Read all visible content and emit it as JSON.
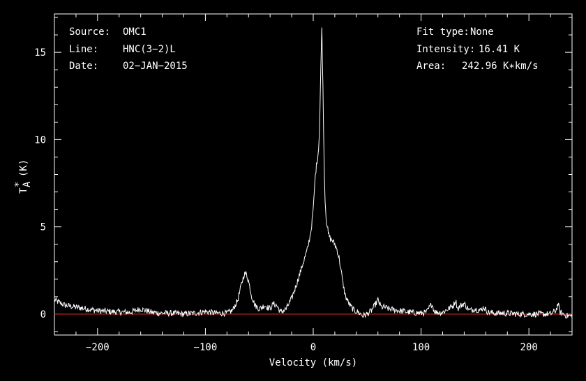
{
  "header": {
    "source_label": "Source:",
    "source_value": "OMC1",
    "line_label": "Line:",
    "line_value": "HNC(3−2)L",
    "date_label": "Date:",
    "date_value": "02−JAN−2015",
    "fit_label": "Fit type:",
    "fit_value": "None",
    "intensity_label": "Intensity:",
    "intensity_value": "16.41 K",
    "area_label": "Area:",
    "area_value": "242.96 K∗km/s"
  },
  "chart_data": {
    "type": "line",
    "xlabel": "Velocity (km/s)",
    "ylabel_main": "T",
    "ylabel_sup": "*",
    "ylabel_sub": "A",
    "ylabel_unit": "(K)",
    "xlim": [
      -240,
      240
    ],
    "ylim": [
      -1.2,
      17.2
    ],
    "x_ticks": [
      -200,
      -100,
      0,
      100,
      200
    ],
    "x_tick_labels": [
      "−200",
      "−100",
      "0",
      "100",
      "200"
    ],
    "y_ticks": [
      0,
      5,
      10,
      15
    ],
    "y_tick_labels": [
      "0",
      "5",
      "10",
      "15"
    ],
    "baseline": 0,
    "colors": {
      "background": "#000000",
      "spectrum": "#ffffff",
      "baseline": "#cc2222",
      "axes": "#ffffff"
    },
    "series": [
      {
        "x": [
          -240,
          -230,
          -220,
          -210,
          -200,
          -190,
          -180,
          -170,
          -160,
          -150,
          -140,
          -130,
          -120,
          -110,
          -100,
          -90,
          -80,
          -75,
          -70,
          -67,
          -64,
          -62,
          -60,
          -57,
          -54,
          -50,
          -45,
          -40,
          -37,
          -34,
          -30,
          -25,
          -20,
          -15,
          -10,
          -5,
          -2,
          0,
          2,
          4,
          5,
          6,
          7,
          8,
          9,
          10,
          11,
          12,
          14,
          16,
          18,
          20,
          22,
          24,
          26,
          28,
          30,
          34,
          38,
          42,
          46,
          50,
          54,
          57,
          60,
          63,
          66,
          70,
          80,
          90,
          100,
          105,
          110,
          112,
          114,
          120,
          125,
          130,
          132,
          134,
          137,
          140,
          145,
          150,
          155,
          158,
          162,
          170,
          180,
          190,
          200,
          210,
          220,
          225,
          227,
          229,
          232,
          235,
          240
        ],
        "y": [
          0.8,
          0.5,
          0.4,
          0.3,
          0.2,
          0.15,
          0.12,
          0.1,
          0.3,
          0.1,
          0.05,
          0.05,
          0.0,
          0.05,
          0.15,
          0.05,
          0.05,
          0.2,
          0.8,
          1.6,
          2.3,
          2.3,
          1.9,
          1.0,
          0.5,
          0.3,
          0.5,
          0.3,
          0.6,
          0.5,
          0.1,
          0.3,
          0.9,
          1.8,
          2.8,
          3.8,
          4.8,
          6.0,
          8.0,
          9.0,
          9.5,
          11.0,
          14.0,
          16.41,
          13.0,
          9.0,
          6.5,
          5.5,
          4.6,
          4.3,
          4.2,
          4.0,
          3.7,
          3.2,
          2.4,
          1.6,
          1.0,
          0.5,
          0.2,
          0.1,
          -0.1,
          0.0,
          0.2,
          0.5,
          0.8,
          0.4,
          0.4,
          0.3,
          0.2,
          0.1,
          0.05,
          0.1,
          0.6,
          0.2,
          0.1,
          0.1,
          0.3,
          0.5,
          0.8,
          0.3,
          0.5,
          0.6,
          0.2,
          0.3,
          0.2,
          0.4,
          0.1,
          0.05,
          0.05,
          0.0,
          0.0,
          0.0,
          0.0,
          0.2,
          0.6,
          0.1,
          0.0,
          -0.1,
          -0.1
        ]
      }
    ]
  }
}
